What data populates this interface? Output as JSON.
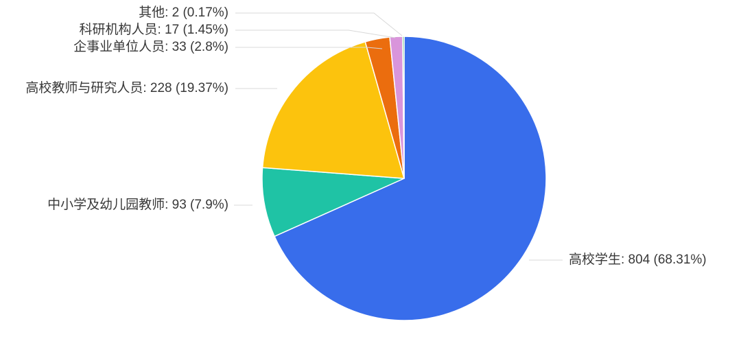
{
  "chart_data": {
    "type": "pie",
    "title": "",
    "legend_position": "none",
    "label_format": "{label}: {value} ({pct}%)",
    "total": 1177,
    "start_angle_deg": 0,
    "direction": "clockwise",
    "slices": [
      {
        "label": "高校学生",
        "value": 804,
        "pct": 68.31,
        "display": "高校学生: 804 (68.31%)",
        "color": "#386DEB"
      },
      {
        "label": "中小学及幼儿园教师",
        "value": 93,
        "pct": 7.9,
        "display": "中小学及幼儿园教师: 93 (7.9%)",
        "color": "#1FC3A5"
      },
      {
        "label": "高校教师与研究人员",
        "value": 228,
        "pct": 19.37,
        "display": "高校教师与研究人员: 228 (19.37%)",
        "color": "#FCC30D"
      },
      {
        "label": "企事业单位人员",
        "value": 33,
        "pct": 2.8,
        "display": "企事业单位人员: 33 (2.8%)",
        "color": "#EB6D0E"
      },
      {
        "label": "科研机构人员",
        "value": 17,
        "pct": 1.45,
        "display": "科研机构人员: 17 (1.45%)",
        "color": "#D995DB"
      },
      {
        "label": "其他",
        "value": 2,
        "pct": 0.17,
        "display": "其他: 2 (0.17%)",
        "color": "#2EA94F"
      }
    ],
    "leader_line_color": "#d8d8d8",
    "text_color": "#383838",
    "background_color": "#ffffff"
  }
}
